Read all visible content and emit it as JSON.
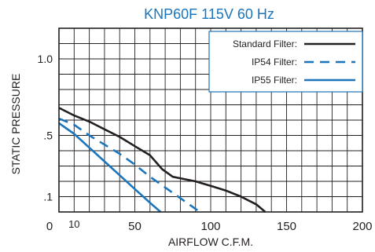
{
  "chart_data": {
    "type": "line",
    "title": "KNP60F 115V 60 Hz",
    "xlabel": "AIRFLOW C.F.M.",
    "ylabel": "STATIC PRESSURE",
    "xlim": [
      0,
      200
    ],
    "ylim": [
      0,
      1.2
    ],
    "x_ticks": [
      {
        "value": 0,
        "label": "0"
      },
      {
        "value": 10,
        "label": "10"
      },
      {
        "value": 50,
        "label": "50"
      },
      {
        "value": 100,
        "label": "100"
      },
      {
        "value": 150,
        "label": "150"
      },
      {
        "value": 200,
        "label": "200"
      }
    ],
    "y_ticks": [
      {
        "value": 0.1,
        "label": ".1"
      },
      {
        "value": 0.5,
        "label": ".5"
      },
      {
        "value": 1.0,
        "label": "1.0"
      }
    ],
    "grid": true,
    "legend_position": "top-right",
    "series": [
      {
        "name": "Standard Filter:",
        "color": "#231f20",
        "dash": "solid",
        "points": [
          [
            0,
            0.68
          ],
          [
            10,
            0.63
          ],
          [
            20,
            0.59
          ],
          [
            30,
            0.54
          ],
          [
            40,
            0.49
          ],
          [
            50,
            0.43
          ],
          [
            60,
            0.37
          ],
          [
            68,
            0.28
          ],
          [
            75,
            0.23
          ],
          [
            80,
            0.22
          ],
          [
            90,
            0.2
          ],
          [
            100,
            0.17
          ],
          [
            110,
            0.14
          ],
          [
            120,
            0.1
          ],
          [
            130,
            0.05
          ],
          [
            136,
            0.0
          ]
        ]
      },
      {
        "name": "IP54 Filter:",
        "color": "#1a75bc",
        "dash": "dashed",
        "points": [
          [
            0,
            0.61
          ],
          [
            10,
            0.57
          ],
          [
            20,
            0.5
          ],
          [
            30,
            0.44
          ],
          [
            40,
            0.38
          ],
          [
            50,
            0.31
          ],
          [
            60,
            0.23
          ],
          [
            70,
            0.16
          ],
          [
            80,
            0.09
          ],
          [
            90,
            0.02
          ],
          [
            93,
            0.0
          ]
        ]
      },
      {
        "name": "IP55 Filter:",
        "color": "#1a75bc",
        "dash": "solid",
        "points": [
          [
            0,
            0.58
          ],
          [
            10,
            0.51
          ],
          [
            20,
            0.42
          ],
          [
            30,
            0.33
          ],
          [
            40,
            0.24
          ],
          [
            50,
            0.15
          ],
          [
            60,
            0.06
          ],
          [
            67,
            0.0
          ]
        ]
      }
    ]
  }
}
